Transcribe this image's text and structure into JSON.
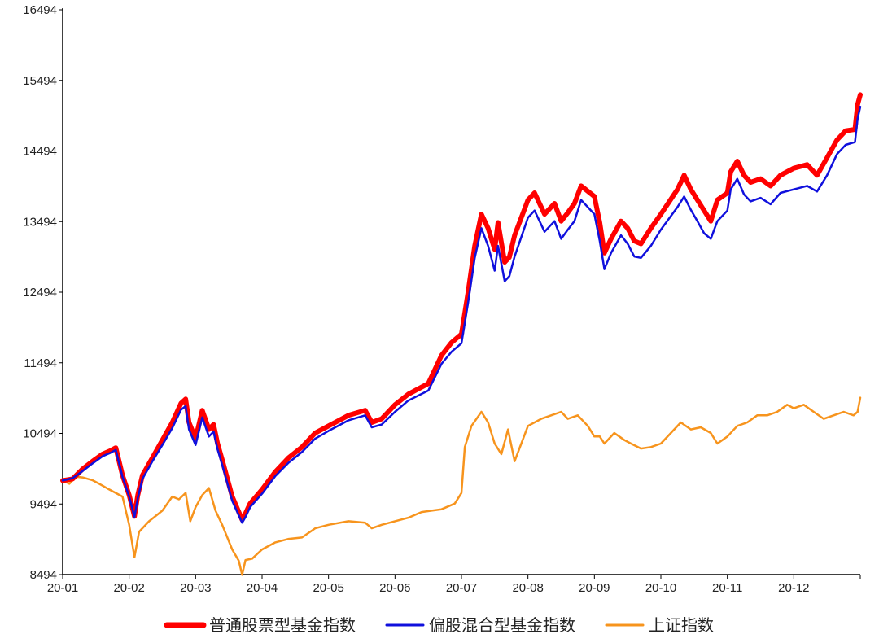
{
  "chart_data": {
    "type": "line",
    "title": "",
    "xlabel": "",
    "ylabel": "",
    "ylim": [
      8494,
      16494
    ],
    "y_ticks": [
      "8494",
      "9494",
      "10494",
      "11494",
      "12494",
      "13494",
      "14494",
      "15494",
      "16494"
    ],
    "x_tick_labels": [
      "20-01",
      "20-02",
      "20-03",
      "20-04",
      "20-05",
      "20-06",
      "20-07",
      "20-08",
      "20-09",
      "20-10",
      "20-11",
      "20-12"
    ],
    "x_range_months": [
      1,
      13
    ],
    "grid": false,
    "legend_position": "bottom",
    "series": [
      {
        "name": "普通股票型基金指数",
        "color": "#ff0000",
        "points": [
          [
            1.0,
            9827
          ],
          [
            1.15,
            9850
          ],
          [
            1.3,
            9990
          ],
          [
            1.45,
            10100
          ],
          [
            1.6,
            10200
          ],
          [
            1.72,
            10250
          ],
          [
            1.8,
            10290
          ],
          [
            1.9,
            9900
          ],
          [
            2.0,
            9620
          ],
          [
            2.08,
            9320
          ],
          [
            2.13,
            9620
          ],
          [
            2.2,
            9900
          ],
          [
            2.35,
            10150
          ],
          [
            2.5,
            10400
          ],
          [
            2.65,
            10650
          ],
          [
            2.78,
            10920
          ],
          [
            2.85,
            10980
          ],
          [
            2.9,
            10650
          ],
          [
            3.0,
            10420
          ],
          [
            3.1,
            10820
          ],
          [
            3.2,
            10550
          ],
          [
            3.27,
            10620
          ],
          [
            3.33,
            10350
          ],
          [
            3.4,
            10120
          ],
          [
            3.55,
            9600
          ],
          [
            3.7,
            9270
          ],
          [
            3.75,
            9360
          ],
          [
            3.82,
            9500
          ],
          [
            4.0,
            9700
          ],
          [
            4.2,
            9950
          ],
          [
            4.4,
            10150
          ],
          [
            4.6,
            10300
          ],
          [
            4.8,
            10500
          ],
          [
            5.0,
            10600
          ],
          [
            5.3,
            10750
          ],
          [
            5.55,
            10820
          ],
          [
            5.65,
            10650
          ],
          [
            5.8,
            10700
          ],
          [
            6.0,
            10900
          ],
          [
            6.2,
            11050
          ],
          [
            6.5,
            11200
          ],
          [
            6.7,
            11600
          ],
          [
            6.85,
            11780
          ],
          [
            7.0,
            11900
          ],
          [
            7.1,
            12500
          ],
          [
            7.2,
            13150
          ],
          [
            7.3,
            13600
          ],
          [
            7.4,
            13400
          ],
          [
            7.5,
            13100
          ],
          [
            7.55,
            13480
          ],
          [
            7.65,
            12920
          ],
          [
            7.72,
            12990
          ],
          [
            7.8,
            13300
          ],
          [
            8.0,
            13800
          ],
          [
            8.1,
            13900
          ],
          [
            8.25,
            13600
          ],
          [
            8.4,
            13750
          ],
          [
            8.5,
            13500
          ],
          [
            8.6,
            13620
          ],
          [
            8.7,
            13750
          ],
          [
            8.8,
            14000
          ],
          [
            9.0,
            13850
          ],
          [
            9.08,
            13480
          ],
          [
            9.15,
            13050
          ],
          [
            9.25,
            13250
          ],
          [
            9.4,
            13500
          ],
          [
            9.5,
            13400
          ],
          [
            9.6,
            13220
          ],
          [
            9.7,
            13180
          ],
          [
            9.85,
            13400
          ],
          [
            10.0,
            13600
          ],
          [
            10.25,
            13950
          ],
          [
            10.35,
            14150
          ],
          [
            10.45,
            13950
          ],
          [
            10.55,
            13800
          ],
          [
            10.65,
            13650
          ],
          [
            10.75,
            13500
          ],
          [
            10.85,
            13800
          ],
          [
            11.0,
            13900
          ],
          [
            11.05,
            14200
          ],
          [
            11.15,
            14350
          ],
          [
            11.25,
            14150
          ],
          [
            11.35,
            14050
          ],
          [
            11.5,
            14100
          ],
          [
            11.65,
            14000
          ],
          [
            11.8,
            14150
          ],
          [
            12.0,
            14250
          ],
          [
            12.2,
            14300
          ],
          [
            12.35,
            14150
          ],
          [
            12.5,
            14400
          ],
          [
            12.65,
            14650
          ],
          [
            12.78,
            14780
          ],
          [
            12.92,
            14800
          ],
          [
            12.96,
            15150
          ],
          [
            13.0,
            15290
          ]
        ]
      },
      {
        "name": "偏股混合型基金指数",
        "color": "#1010dd",
        "points": [
          [
            1.0,
            9827
          ],
          [
            1.15,
            9860
          ],
          [
            1.3,
            9960
          ],
          [
            1.45,
            10070
          ],
          [
            1.6,
            10170
          ],
          [
            1.72,
            10220
          ],
          [
            1.8,
            10260
          ],
          [
            1.9,
            9880
          ],
          [
            2.0,
            9600
          ],
          [
            2.08,
            9310
          ],
          [
            2.13,
            9580
          ],
          [
            2.2,
            9850
          ],
          [
            2.35,
            10100
          ],
          [
            2.5,
            10330
          ],
          [
            2.65,
            10570
          ],
          [
            2.78,
            10830
          ],
          [
            2.85,
            10880
          ],
          [
            2.9,
            10550
          ],
          [
            3.0,
            10330
          ],
          [
            3.1,
            10720
          ],
          [
            3.2,
            10450
          ],
          [
            3.27,
            10520
          ],
          [
            3.33,
            10270
          ],
          [
            3.4,
            10050
          ],
          [
            3.55,
            9540
          ],
          [
            3.7,
            9230
          ],
          [
            3.75,
            9310
          ],
          [
            3.82,
            9450
          ],
          [
            4.0,
            9640
          ],
          [
            4.2,
            9890
          ],
          [
            4.4,
            10080
          ],
          [
            4.6,
            10230
          ],
          [
            4.8,
            10420
          ],
          [
            5.0,
            10530
          ],
          [
            5.3,
            10680
          ],
          [
            5.55,
            10750
          ],
          [
            5.65,
            10580
          ],
          [
            5.8,
            10620
          ],
          [
            6.0,
            10800
          ],
          [
            6.2,
            10960
          ],
          [
            6.5,
            11100
          ],
          [
            6.7,
            11480
          ],
          [
            6.85,
            11650
          ],
          [
            7.0,
            11770
          ],
          [
            7.1,
            12350
          ],
          [
            7.2,
            12980
          ],
          [
            7.3,
            13400
          ],
          [
            7.4,
            13150
          ],
          [
            7.5,
            12800
          ],
          [
            7.55,
            13150
          ],
          [
            7.65,
            12650
          ],
          [
            7.72,
            12720
          ],
          [
            7.8,
            13000
          ],
          [
            8.0,
            13550
          ],
          [
            8.1,
            13650
          ],
          [
            8.25,
            13350
          ],
          [
            8.4,
            13500
          ],
          [
            8.5,
            13250
          ],
          [
            8.6,
            13380
          ],
          [
            8.7,
            13500
          ],
          [
            8.8,
            13800
          ],
          [
            9.0,
            13600
          ],
          [
            9.08,
            13220
          ],
          [
            9.15,
            12820
          ],
          [
            9.25,
            13050
          ],
          [
            9.4,
            13300
          ],
          [
            9.5,
            13180
          ],
          [
            9.6,
            13000
          ],
          [
            9.7,
            12980
          ],
          [
            9.85,
            13150
          ],
          [
            10.0,
            13380
          ],
          [
            10.25,
            13700
          ],
          [
            10.35,
            13850
          ],
          [
            10.45,
            13660
          ],
          [
            10.55,
            13500
          ],
          [
            10.65,
            13330
          ],
          [
            10.75,
            13250
          ],
          [
            10.85,
            13500
          ],
          [
            11.0,
            13650
          ],
          [
            11.05,
            13950
          ],
          [
            11.15,
            14100
          ],
          [
            11.25,
            13880
          ],
          [
            11.35,
            13780
          ],
          [
            11.5,
            13830
          ],
          [
            11.65,
            13740
          ],
          [
            11.8,
            13900
          ],
          [
            12.0,
            13950
          ],
          [
            12.2,
            14000
          ],
          [
            12.35,
            13920
          ],
          [
            12.5,
            14150
          ],
          [
            12.65,
            14450
          ],
          [
            12.78,
            14580
          ],
          [
            12.92,
            14620
          ],
          [
            12.96,
            14950
          ],
          [
            13.0,
            15120
          ]
        ]
      },
      {
        "name": "上证指数",
        "color": "#f7941d",
        "points": [
          [
            1.0,
            9830
          ],
          [
            1.1,
            9780
          ],
          [
            1.2,
            9880
          ],
          [
            1.3,
            9870
          ],
          [
            1.45,
            9830
          ],
          [
            1.55,
            9780
          ],
          [
            1.7,
            9700
          ],
          [
            1.9,
            9600
          ],
          [
            2.0,
            9200
          ],
          [
            2.08,
            8740
          ],
          [
            2.15,
            9100
          ],
          [
            2.3,
            9250
          ],
          [
            2.5,
            9400
          ],
          [
            2.65,
            9600
          ],
          [
            2.75,
            9560
          ],
          [
            2.85,
            9650
          ],
          [
            2.92,
            9250
          ],
          [
            3.0,
            9450
          ],
          [
            3.1,
            9620
          ],
          [
            3.2,
            9720
          ],
          [
            3.3,
            9400
          ],
          [
            3.4,
            9200
          ],
          [
            3.55,
            8850
          ],
          [
            3.65,
            8690
          ],
          [
            3.7,
            8490
          ],
          [
            3.75,
            8700
          ],
          [
            3.85,
            8720
          ],
          [
            4.0,
            8850
          ],
          [
            4.2,
            8950
          ],
          [
            4.4,
            9000
          ],
          [
            4.6,
            9020
          ],
          [
            4.8,
            9150
          ],
          [
            5.0,
            9200
          ],
          [
            5.3,
            9250
          ],
          [
            5.55,
            9230
          ],
          [
            5.65,
            9150
          ],
          [
            5.8,
            9200
          ],
          [
            6.0,
            9250
          ],
          [
            6.2,
            9300
          ],
          [
            6.4,
            9380
          ],
          [
            6.55,
            9400
          ],
          [
            6.7,
            9420
          ],
          [
            6.9,
            9500
          ],
          [
            7.0,
            9650
          ],
          [
            7.05,
            10300
          ],
          [
            7.15,
            10600
          ],
          [
            7.3,
            10800
          ],
          [
            7.4,
            10650
          ],
          [
            7.5,
            10350
          ],
          [
            7.6,
            10200
          ],
          [
            7.7,
            10550
          ],
          [
            7.8,
            10100
          ],
          [
            8.0,
            10600
          ],
          [
            8.2,
            10700
          ],
          [
            8.35,
            10750
          ],
          [
            8.5,
            10800
          ],
          [
            8.6,
            10700
          ],
          [
            8.75,
            10750
          ],
          [
            8.9,
            10600
          ],
          [
            9.0,
            10450
          ],
          [
            9.08,
            10450
          ],
          [
            9.15,
            10350
          ],
          [
            9.3,
            10500
          ],
          [
            9.45,
            10400
          ],
          [
            9.55,
            10350
          ],
          [
            9.7,
            10280
          ],
          [
            9.85,
            10300
          ],
          [
            10.0,
            10350
          ],
          [
            10.15,
            10500
          ],
          [
            10.3,
            10650
          ],
          [
            10.45,
            10550
          ],
          [
            10.6,
            10580
          ],
          [
            10.75,
            10500
          ],
          [
            10.85,
            10350
          ],
          [
            11.0,
            10450
          ],
          [
            11.15,
            10600
          ],
          [
            11.3,
            10650
          ],
          [
            11.45,
            10750
          ],
          [
            11.6,
            10750
          ],
          [
            11.75,
            10800
          ],
          [
            11.9,
            10900
          ],
          [
            12.0,
            10850
          ],
          [
            12.15,
            10900
          ],
          [
            12.3,
            10800
          ],
          [
            12.45,
            10700
          ],
          [
            12.6,
            10750
          ],
          [
            12.75,
            10800
          ],
          [
            12.9,
            10750
          ],
          [
            12.96,
            10800
          ],
          [
            13.0,
            11000
          ]
        ]
      }
    ]
  }
}
